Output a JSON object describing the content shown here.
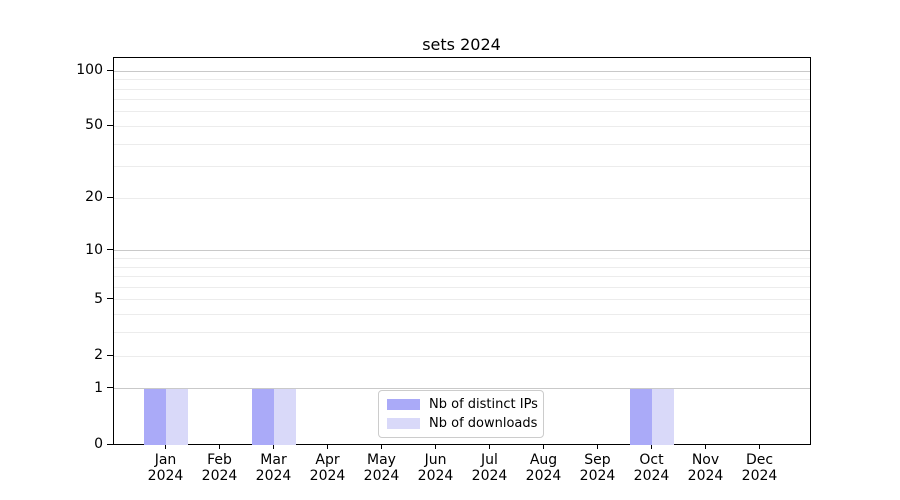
{
  "figure": {
    "title": "sets 2024"
  },
  "chart_data": {
    "type": "bar",
    "title": "sets 2024",
    "categories": [
      "Jan",
      "Feb",
      "Mar",
      "Apr",
      "May",
      "Jun",
      "Jul",
      "Aug",
      "Sep",
      "Oct",
      "Nov",
      "Dec"
    ],
    "category_year_line": "2024",
    "series": [
      {
        "name": "Nb of distinct IPs",
        "color": "#aaaaf8",
        "values": [
          1,
          0,
          1,
          0,
          0,
          0,
          0,
          0,
          0,
          1,
          0,
          0
        ]
      },
      {
        "name": "Nb of downloads",
        "color": "#d9d9f9",
        "values": [
          1,
          0,
          1,
          0,
          0,
          0,
          0,
          0,
          0,
          1,
          0,
          0
        ]
      }
    ],
    "y_axis": {
      "scale": "log1p",
      "tick_values": [
        0,
        1,
        2,
        5,
        10,
        20,
        50,
        100
      ],
      "major_gridline_values": [
        1,
        10,
        100
      ],
      "minor_gridline_values": [
        2,
        3,
        4,
        5,
        6,
        7,
        8,
        9,
        20,
        30,
        40,
        50,
        60,
        70,
        80,
        90
      ],
      "ymax": 117.8
    },
    "x_axis": {
      "label_format": "month over year, two lines"
    },
    "legend": {
      "position": "lower center",
      "entries": [
        "Nb of distinct IPs",
        "Nb of downloads"
      ]
    },
    "grid": true
  },
  "colors": {
    "background": "#ffffff",
    "spine": "#000000",
    "major_gridline": "#c9c9c9",
    "minor_gridline": "#ececec",
    "legend_border": "#cccccc",
    "bar_distinct_ips": "#aaaaf8",
    "bar_downloads": "#d9d9f9"
  }
}
